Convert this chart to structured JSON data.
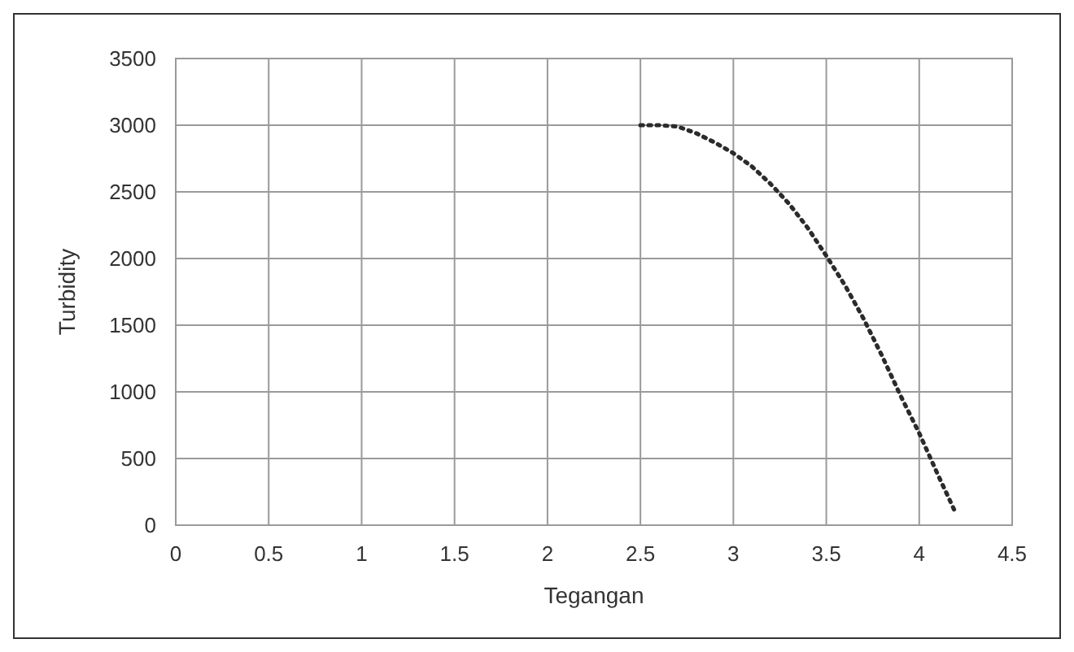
{
  "chart_data": {
    "type": "line",
    "xlabel": "Tegangan",
    "ylabel": "Turbidity",
    "x": [
      2.5,
      2.6,
      2.7,
      2.8,
      2.9,
      3.0,
      3.1,
      3.2,
      3.3,
      3.4,
      3.5,
      3.6,
      3.7,
      3.8,
      3.9,
      4.0,
      4.1,
      4.2
    ],
    "series": [
      {
        "color": "#2b2b2b",
        "values": [
          3000,
          3000,
          2990,
          2940,
          2870,
          2790,
          2690,
          2560,
          2410,
          2230,
          2020,
          1800,
          1550,
          1270,
          970,
          690,
          380,
          80
        ]
      }
    ],
    "xlim": [
      0,
      4.5
    ],
    "xticks": [
      0,
      0.5,
      1,
      1.5,
      2,
      2.5,
      3,
      3.5,
      4,
      4.5
    ],
    "ylim": [
      0,
      3500
    ],
    "yticks": [
      0,
      500,
      1000,
      1500,
      2000,
      2500,
      3000,
      3500
    ],
    "grid": true,
    "marker": "none",
    "line_style": "dotted"
  }
}
